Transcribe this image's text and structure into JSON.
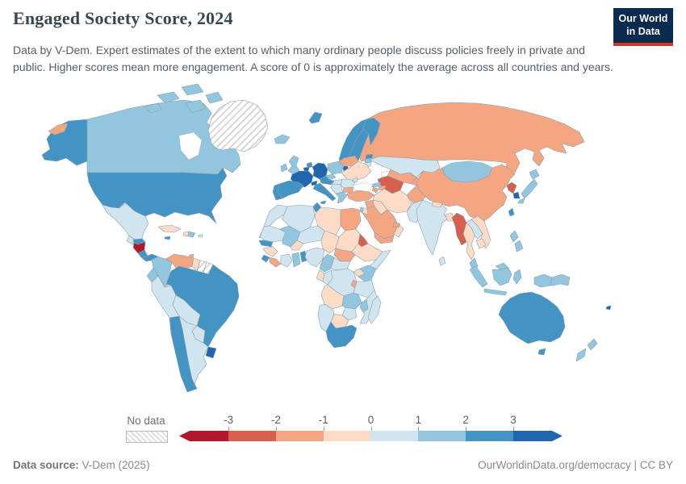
{
  "header": {
    "title": "Engaged Society Score, 2024",
    "logo": {
      "line1": "Our World",
      "line2": "in Data",
      "bg_color": "#0b2a4f",
      "accent_color": "#d7352a"
    }
  },
  "subtitle": "Data by V-Dem. Expert estimates of the extent to which many ordinary people discuss policies freely in private and public. Higher scores mean more engagement. A score of 0 is approximately the average across all countries and years.",
  "legend": {
    "no_data_label": "No data",
    "ticks": [
      "-3",
      "-2",
      "-1",
      "0",
      "1",
      "2",
      "3"
    ],
    "colors": [
      "#b2182b",
      "#d6604d",
      "#f4a582",
      "#fddbc7",
      "#d1e5f0",
      "#92c5de",
      "#4393c3",
      "#2166ac"
    ],
    "bands": [
      "below -3",
      "-3 to -2",
      "-2 to -1",
      "-1 to 0",
      "0 to 1",
      "1 to 2",
      "2 to 3",
      "above 3"
    ]
  },
  "footer": {
    "source_label": "Data source:",
    "source_value": " V-Dem (2025)",
    "right_link": "OurWorldinData.org/democracy",
    "separator": " | ",
    "license": "CC BY"
  },
  "map": {
    "border_color": "#8CA0AE",
    "countries": {
      "alaska": 6,
      "canada": 5,
      "usa": 6,
      "greenland": "nd",
      "iceland": 5,
      "svalbard": 6,
      "mexico": 4,
      "guatemala": 4,
      "honduras": 6,
      "nicaragua": 0,
      "costa-rica": 6,
      "panama": 6,
      "cuba": 3,
      "jamaica": 6,
      "haiti": 3,
      "dominican-republic": 5,
      "puerto-rico": 4,
      "trinidad": 2,
      "colombia": 5,
      "venezuela": 2,
      "guyana": 3,
      "suriname": "nd",
      "french-guiana": "nd",
      "ecuador": 5,
      "peru": 4,
      "brazil": 6,
      "bolivia": 4,
      "paraguay": 4,
      "chile": 6,
      "argentina": 4,
      "uruguay": 7,
      "norway": 6,
      "sweden": 6,
      "finland": 6,
      "denmark": 7,
      "estonia": 6,
      "latvia": 5,
      "lithuania": 4,
      "uk": 5,
      "ireland": 5,
      "netherlands": 6,
      "belgium": 7,
      "germany": 7,
      "poland": 5,
      "belarus": 2,
      "ukraine": 3,
      "france": 7,
      "switzerland": 7,
      "austria": 6,
      "czechia": 5,
      "hungary": 4,
      "romania": 4,
      "moldova": 4,
      "serbia": 4,
      "bulgaria": 2,
      "greece": 5,
      "italy": 6,
      "sicily": 6,
      "spain": 6,
      "portugal": 6,
      "russia": 2,
      "russia-east": 2,
      "kazakhstan": 4,
      "uzbekistan": 2,
      "turkmenistan": 1,
      "kyrgyzstan": 3,
      "tajikistan": 2,
      "georgia": 5,
      "azerbaijan": 2,
      "armenia": 2,
      "turkey": 2,
      "syria": 2,
      "iraq": 3,
      "jordan": 3,
      "israel": 5,
      "saudi-arabia": 2,
      "yemen": 2,
      "oman": 3,
      "uae": 2,
      "iran": 3,
      "afghanistan": 2,
      "pakistan": 4,
      "morocco": 4,
      "western-sahara": "nd",
      "algeria": 4,
      "tunisia": 6,
      "libya": 3,
      "egypt": 2,
      "mauritania": 4,
      "mali": 5,
      "burkina-faso": 3,
      "niger": 4,
      "chad": 3,
      "sudan": 3,
      "eritrea": 1,
      "ethiopia": 3,
      "somalia": 4,
      "south-sudan": 2,
      "senegal": 6,
      "guinea": 3,
      "sierra-leone": 6,
      "liberia": 2,
      "ivory-coast": 4,
      "ghana": 5,
      "benin": 6,
      "nigeria": 4,
      "cameroon": 5,
      "central-african-republic": 4,
      "gabon": 3,
      "congo": 4,
      "drc": 4,
      "uganda": 3,
      "kenya": 5,
      "rwanda-burundi": 2,
      "tanzania": 4,
      "angola": 3,
      "zambia": 5,
      "malawi": 5,
      "mozambique": 4,
      "zimbabwe": 4,
      "botswana": 3,
      "namibia": 4,
      "south-africa": 6,
      "madagascar": 4,
      "china": 2,
      "mongolia": 5,
      "north-korea": 1,
      "south-korea": 7,
      "japan-hokkaido": 5,
      "japan-honshu": 5,
      "japan-kyushu": 5,
      "taiwan": 6,
      "india": 4,
      "nepal": 3,
      "bangladesh": 3,
      "sri-lanka": 4,
      "myanmar": 1,
      "thailand": 3,
      "laos": 4,
      "vietnam": 3,
      "cambodia": 3,
      "malaysia": 5,
      "malaysia-borneo": 5,
      "indonesia-sumatra": 5,
      "indonesia-java": 5,
      "indonesia-borneo": 5,
      "indonesia-sulawesi": 5,
      "indonesia-papua": 5,
      "philippines-north": 5,
      "philippines-south": 5,
      "papua-new-guinea": 5,
      "australia": 6,
      "tasmania": 6,
      "new-zealand-north": 5,
      "new-zealand-south": 5,
      "fiji": 7
    }
  }
}
